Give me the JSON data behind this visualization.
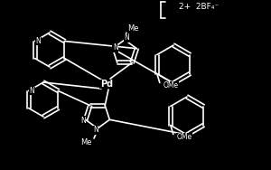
{
  "background_color": "#000000",
  "line_color": "#ffffff",
  "text_color": "#ffffff",
  "charge_text": "2+  2BF₄⁻",
  "label_Me_top": "Me",
  "label_Me_bottom": "Me",
  "label_Pd": "Pd",
  "label_N": "N",
  "label_OMe1": "OMe",
  "label_OMe2": "OMe",
  "lw": 1.2
}
